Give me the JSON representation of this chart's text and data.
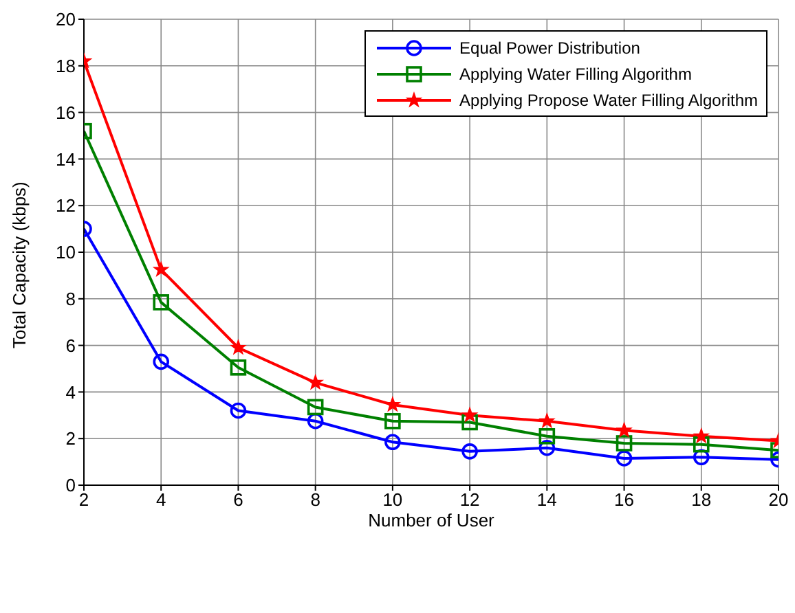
{
  "chart_data": {
    "type": "line",
    "xlabel": "Number of User",
    "ylabel": "Total Capacity (kbps)",
    "x": [
      2,
      4,
      6,
      8,
      10,
      12,
      14,
      16,
      18,
      20
    ],
    "xlim": [
      2,
      20
    ],
    "xticks": [
      2,
      4,
      6,
      8,
      10,
      12,
      14,
      16,
      18,
      20
    ],
    "ylim": [
      0,
      20
    ],
    "yticks": [
      0,
      2,
      4,
      6,
      8,
      10,
      12,
      14,
      16,
      18,
      20
    ],
    "grid": true,
    "legend": "top right",
    "line_style": "solid",
    "series": [
      {
        "name": "Equal Power Distribution",
        "color": "#0000ff",
        "marker": "circle",
        "values": [
          11,
          5.3,
          3.2,
          2.75,
          1.85,
          1.45,
          1.6,
          1.15,
          1.2,
          1.1
        ]
      },
      {
        "name": "Applying Water Filling Algorithm",
        "color": "#008000",
        "marker": "square",
        "values": [
          15.2,
          7.85,
          5.05,
          3.35,
          2.75,
          2.7,
          2.1,
          1.8,
          1.75,
          1.5
        ]
      },
      {
        "name": "Applying Propose Water Filling Algorithm",
        "color": "#ff0000",
        "marker": "star",
        "values": [
          18.2,
          9.25,
          5.9,
          4.4,
          3.45,
          3.0,
          2.75,
          2.35,
          2.1,
          1.9
        ]
      }
    ]
  }
}
